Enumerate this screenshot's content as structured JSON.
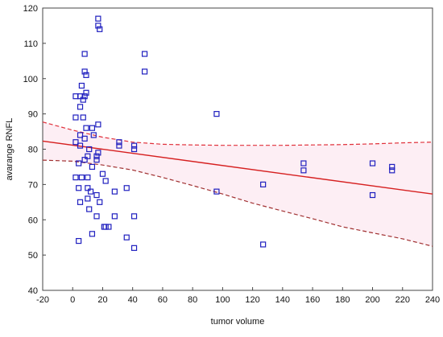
{
  "chart_data": {
    "type": "scatter",
    "xlabel": "tumor volume",
    "ylabel": "avarange RNFL",
    "xlim": [
      -20,
      240
    ],
    "ylim": [
      40,
      120
    ],
    "xticks": [
      -20,
      0,
      20,
      40,
      60,
      80,
      100,
      120,
      140,
      160,
      180,
      200,
      220,
      240
    ],
    "yticks": [
      40,
      50,
      60,
      70,
      80,
      90,
      100,
      110,
      120
    ],
    "grid": false,
    "colors": {
      "points": "#1f1fbf",
      "fit": "#d62020",
      "ci_band": "#fbe3ec",
      "ci_line_upper": "#e0303a",
      "ci_line_lower": "#a03030"
    },
    "points": [
      [
        17,
        117
      ],
      [
        17,
        115
      ],
      [
        18,
        114
      ],
      [
        8,
        107
      ],
      [
        48,
        107
      ],
      [
        8,
        102
      ],
      [
        9,
        101
      ],
      [
        48,
        102
      ],
      [
        6,
        98
      ],
      [
        5,
        95
      ],
      [
        9,
        96
      ],
      [
        8,
        95
      ],
      [
        2,
        95
      ],
      [
        7,
        94
      ],
      [
        5,
        92
      ],
      [
        2,
        89
      ],
      [
        7,
        89
      ],
      [
        96,
        90
      ],
      [
        17,
        87
      ],
      [
        13,
        86
      ],
      [
        9,
        86
      ],
      [
        14,
        84
      ],
      [
        5,
        84
      ],
      [
        8,
        83
      ],
      [
        2,
        82
      ],
      [
        31,
        82
      ],
      [
        31,
        81
      ],
      [
        41,
        81
      ],
      [
        41,
        80
      ],
      [
        5,
        81
      ],
      [
        11,
        80
      ],
      [
        17,
        79
      ],
      [
        16,
        78
      ],
      [
        10,
        78
      ],
      [
        16,
        77
      ],
      [
        8,
        77
      ],
      [
        4,
        76
      ],
      [
        154,
        76
      ],
      [
        154,
        74
      ],
      [
        200,
        76
      ],
      [
        213,
        75
      ],
      [
        213,
        74
      ],
      [
        13,
        75
      ],
      [
        20,
        73
      ],
      [
        6,
        72
      ],
      [
        2,
        72
      ],
      [
        10,
        72
      ],
      [
        22,
        71
      ],
      [
        127,
        70
      ],
      [
        4,
        69
      ],
      [
        10,
        69
      ],
      [
        36,
        69
      ],
      [
        12,
        68
      ],
      [
        28,
        68
      ],
      [
        96,
        68
      ],
      [
        16,
        67
      ],
      [
        200,
        67
      ],
      [
        10,
        66
      ],
      [
        5,
        65
      ],
      [
        18,
        65
      ],
      [
        11,
        63
      ],
      [
        16,
        61
      ],
      [
        28,
        61
      ],
      [
        41,
        61
      ],
      [
        21,
        58
      ],
      [
        22,
        58
      ],
      [
        24,
        58
      ],
      [
        13,
        56
      ],
      [
        36,
        55
      ],
      [
        4,
        54
      ],
      [
        127,
        53
      ],
      [
        41,
        52
      ]
    ],
    "fit_line": {
      "x": [
        -20,
        240
      ],
      "y": [
        82.3,
        67.3
      ]
    },
    "ci_upper": {
      "x": [
        -20,
        0,
        20,
        40,
        60,
        80,
        100,
        120,
        140,
        160,
        180,
        200,
        220,
        240
      ],
      "y": [
        87.7,
        85.4,
        83.4,
        82.0,
        81.4,
        81.2,
        81.1,
        81.1,
        81.1,
        81.2,
        81.3,
        81.5,
        81.8,
        82.0
      ]
    },
    "ci_lower": {
      "x": [
        -20,
        0,
        20,
        40,
        60,
        80,
        100,
        120,
        140,
        160,
        180,
        200,
        220,
        240
      ],
      "y": [
        76.9,
        76.6,
        75.5,
        74.1,
        72.0,
        69.7,
        67.3,
        64.7,
        62.5,
        60.3,
        58.0,
        56.3,
        54.6,
        52.5
      ]
    }
  }
}
